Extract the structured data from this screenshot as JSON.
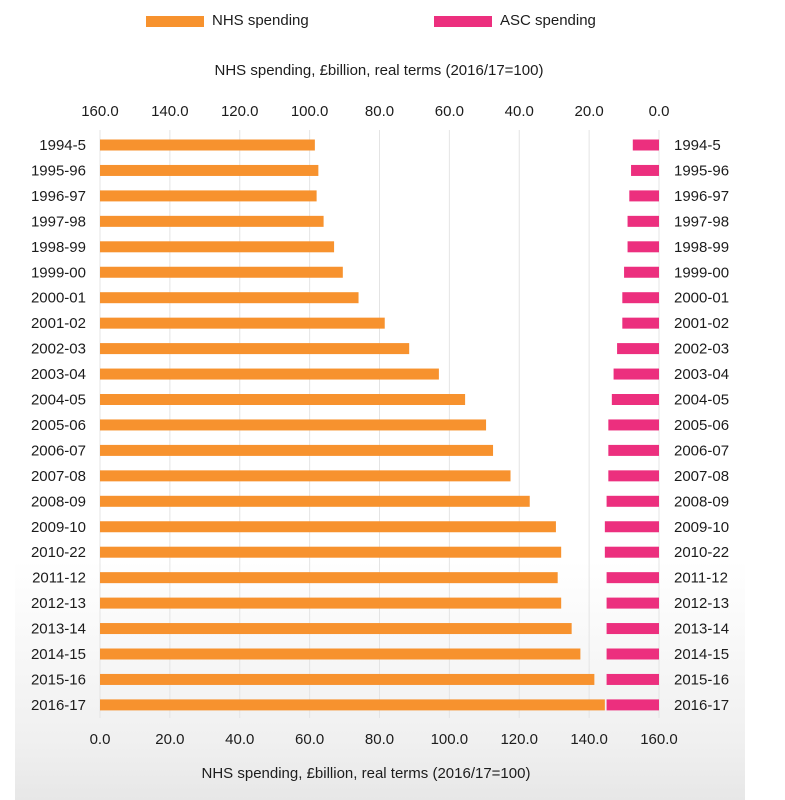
{
  "legend": [
    {
      "label": "NHS spending",
      "color": "#f7922e"
    },
    {
      "label": "ASC spending",
      "color": "#ec2f7e"
    }
  ],
  "top_axis_title": "NHS spending, £billion, real terms (2016/17=100)",
  "bottom_axis_title": "NHS spending, £billion, real terms (2016/17=100)",
  "chart_data": {
    "type": "bar",
    "orientation": "horizontal",
    "layout": "mirrored",
    "categories": [
      "1994-5",
      "1995-96",
      "1996-97",
      "1997-98",
      "1998-99",
      "1999-00",
      "2000-01",
      "2001-02",
      "2002-03",
      "2003-04",
      "2004-05",
      "2005-06",
      "2006-07",
      "2007-08",
      "2008-09",
      "2009-10",
      "2010-22",
      "2011-12",
      "2012-13",
      "2013-14",
      "2014-15",
      "2015-16",
      "2016-17"
    ],
    "series": [
      {
        "name": "NHS spending",
        "color": "#f7922e",
        "values": [
          61.5,
          62.5,
          62.0,
          64.0,
          67.0,
          69.5,
          74.0,
          81.5,
          88.5,
          97.0,
          104.5,
          110.5,
          112.5,
          117.5,
          123.0,
          130.5,
          132.0,
          131.0,
          132.0,
          135.0,
          137.5,
          141.5,
          144.5
        ]
      },
      {
        "name": "ASC spending",
        "color": "#ec2f7e",
        "values": [
          7.5,
          8.0,
          8.5,
          9.0,
          9.0,
          10.0,
          10.5,
          10.5,
          12.0,
          13.0,
          13.5,
          14.5,
          14.5,
          14.5,
          15.0,
          15.5,
          15.5,
          15.0,
          15.0,
          15.0,
          15.0,
          15.0,
          15.0
        ]
      }
    ],
    "xlim": [
      0,
      160
    ],
    "ticks": [
      "0.0",
      "20.0",
      "40.0",
      "60.0",
      "80.0",
      "100.0",
      "120.0",
      "140.0",
      "160.0"
    ],
    "top_ticks": [
      "160.0",
      "140.0",
      "120.0",
      "100.0",
      "80.0",
      "60.0",
      "40.0",
      "20.0",
      "0.0"
    ],
    "grid": true,
    "legend_position": "top"
  }
}
